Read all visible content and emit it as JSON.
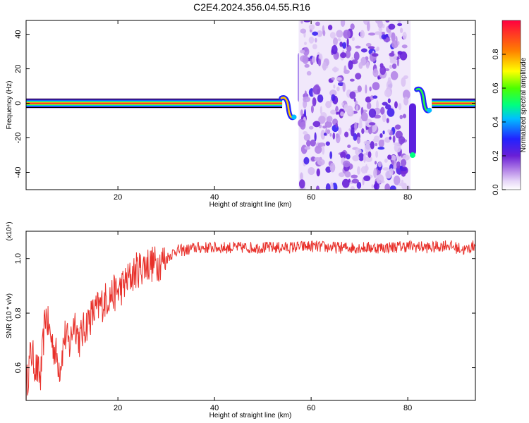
{
  "title": "C2E4.2024.356.04.55.R16",
  "chart_data": [
    {
      "type": "heatmap",
      "xlabel": "Height of straight line (km)",
      "ylabel": "Frequency (Hz)",
      "xlim": [
        1,
        94
      ],
      "ylim": [
        -50,
        48
      ],
      "xticks": [
        20,
        40,
        60,
        80
      ],
      "yticks": [
        -40,
        -20,
        0,
        20,
        40
      ],
      "colorbar": {
        "label": "Normalized spectral amplitude",
        "range": [
          0,
          1
        ],
        "ticks": [
          0.0,
          0.2,
          0.4,
          0.6,
          0.8
        ]
      },
      "features": [
        {
          "name": "line",
          "x_range": [
            1,
            54
          ],
          "frequency": 0,
          "amplitude": 0.95
        },
        {
          "name": "wiggle",
          "x": 55,
          "frequency_range": [
            -8,
            3
          ],
          "amplitude": 0.75
        },
        {
          "name": "spike",
          "x": 58,
          "frequency": 30,
          "amplitude": 0.6
        },
        {
          "name": "noise",
          "x_range": [
            58,
            80
          ],
          "frequency_range": [
            -50,
            48
          ],
          "amplitude": 0.2
        },
        {
          "name": "spike",
          "x": 81,
          "frequency": -30,
          "amplitude": 0.5
        },
        {
          "name": "wiggle",
          "x": 83,
          "frequency_range": [
            -4,
            8
          ],
          "amplitude": 0.55
        },
        {
          "name": "line",
          "x_range": [
            85,
            94
          ],
          "frequency": 0,
          "amplitude": 0.95
        }
      ]
    },
    {
      "type": "line",
      "xlabel": "Height of straight line (km)",
      "ylabel": "SNR (10 * v/v)",
      "yscale_note": "(x10⁴)",
      "xlim": [
        1,
        94
      ],
      "ylim": [
        0.48,
        1.1
      ],
      "xticks": [
        20,
        40,
        60,
        80
      ],
      "yticks": [
        0.6,
        0.8,
        1.0
      ],
      "color": "#e8302a",
      "series": [
        {
          "x": [
            1,
            2,
            3,
            4,
            5,
            6,
            7,
            8,
            9,
            10,
            11,
            12,
            14,
            16,
            18,
            20,
            22,
            24,
            26,
            28,
            30,
            32,
            34,
            36,
            38,
            40,
            45,
            50,
            55,
            60,
            65,
            70,
            75,
            80,
            85,
            88,
            90,
            92,
            94
          ],
          "values": [
            0.52,
            0.66,
            0.6,
            0.56,
            0.8,
            0.72,
            0.66,
            0.6,
            0.72,
            0.68,
            0.78,
            0.7,
            0.78,
            0.82,
            0.86,
            0.88,
            0.92,
            0.96,
            0.98,
            0.98,
            1.0,
            1.03,
            1.03,
            1.04,
            1.04,
            1.04,
            1.04,
            1.04,
            1.04,
            1.045,
            1.04,
            1.04,
            1.04,
            1.045,
            1.04,
            1.05,
            1.04,
            1.03,
            1.05
          ]
        }
      ]
    }
  ]
}
